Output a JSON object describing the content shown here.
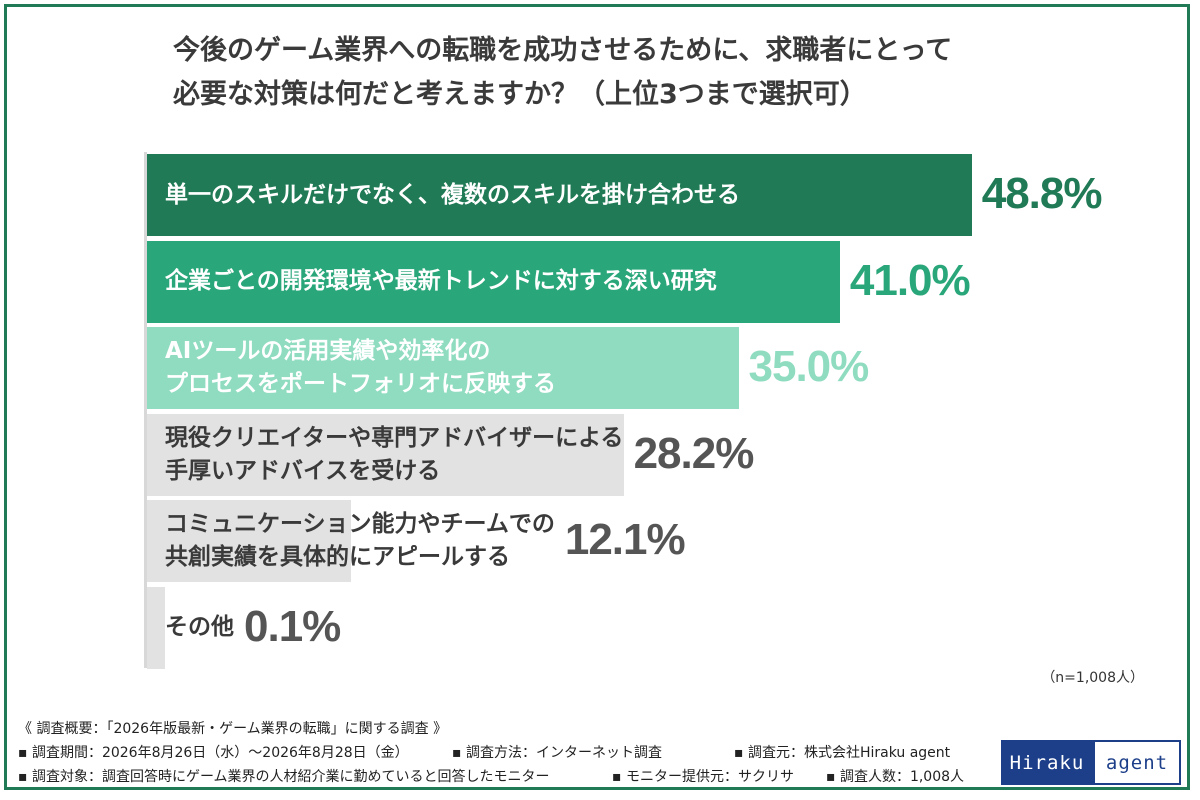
{
  "title": {
    "line1": "今後のゲーム業界への転職を成功させるために、求職者にとって",
    "line2": "必要な対策は何だと考えますか？（上位3つまで選択可）"
  },
  "chart_data": {
    "type": "bar",
    "orientation": "horizontal",
    "unit": "%",
    "categories": [
      "単一のスキルだけでなく、複数のスキルを掛け合わせる",
      "企業ごとの開発環境や最新トレンドに対する深い研究",
      "AIツールの活用実績や効率化のプロセスをポートフォリオに反映する",
      "現役クリエイターや専門アドバイザーによる手厚いアドバイスを受ける",
      "コミュニケーション能力やチームでの共創実績を具体的にアピールする",
      "その他"
    ],
    "values": [
      48.8,
      41.0,
      35.0,
      28.2,
      12.1,
      0.1
    ],
    "value_labels": [
      "48.8%",
      "41.0%",
      "35.0%",
      "28.2%",
      "12.1%",
      "0.1%"
    ],
    "bar_colors": [
      "#1f7a55",
      "#2aa77a",
      "#8fdcc0",
      "#e2e2e2",
      "#e2e2e2",
      "#e2e2e2"
    ],
    "value_colors": [
      "#1f7a55",
      "#2aa77a",
      "#8fdcc0",
      "#555555",
      "#555555",
      "#555555"
    ],
    "label_colors": [
      "#ffffff",
      "#ffffff",
      "#ffffff",
      "#3a3a3a",
      "#3a3a3a",
      "#3a3a3a"
    ]
  },
  "bars": [
    {
      "label_lines": [
        "単一のスキルだけでなく、複数のスキルを掛け合わせる"
      ],
      "value": "48.8%"
    },
    {
      "label_lines": [
        "企業ごとの開発環境や最新トレンドに対する深い研究"
      ],
      "value": "41.0%"
    },
    {
      "label_lines": [
        "AIツールの活用実績や効率化の",
        "プロセスをポートフォリオに反映する"
      ],
      "value": "35.0%"
    },
    {
      "label_lines": [
        "現役クリエイターや専門アドバイザーによる",
        "手厚いアドバイスを受ける"
      ],
      "value": "28.2%"
    },
    {
      "label_lines": [
        "コミュニケーション能力やチームでの",
        "共創実績を具体的にアピールする"
      ],
      "value": "12.1%"
    },
    {
      "label_lines": [
        "その他"
      ],
      "value": "0.1%"
    }
  ],
  "n_note": "（n=1,008人）",
  "survey": {
    "heading": "《 調査概要：「2026年版最新・ゲーム業界の転職」に関する調査 》",
    "period": "▪ 調査期間：2026年8月26日（水）～2026年8月28日（金）",
    "method": "▪ 調査方法：インターネット調査",
    "source": "▪ 調査元：株式会社Hiraku agent",
    "target": "▪ 調査対象：調査回答時にゲーム業界の人材紹介業に勤めていると回答したモニター",
    "provider": "▪ モニター提供元：サクリサ",
    "count": "▪ 調査人数：1,008人"
  },
  "logo": {
    "part1": "Hiraku",
    "part2": "agent"
  }
}
